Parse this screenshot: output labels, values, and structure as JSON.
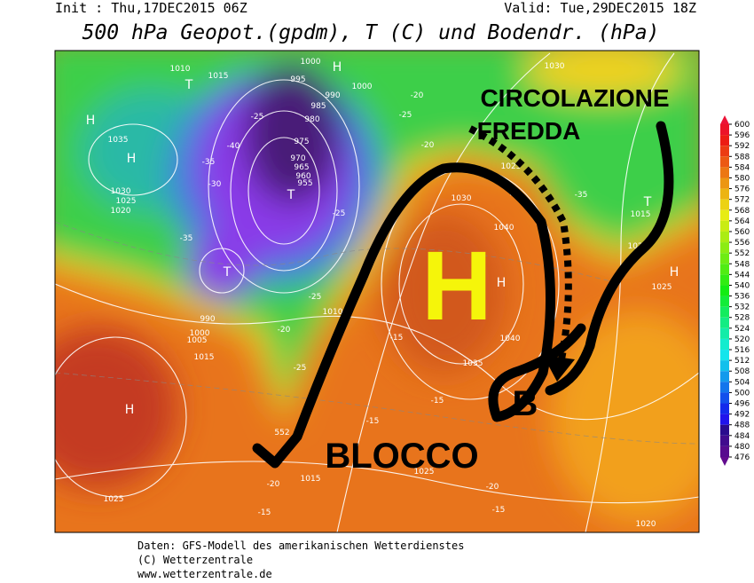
{
  "header": {
    "init": "Init : Thu,17DEC2015 06Z",
    "valid": "Valid: Tue,29DEC2015 18Z",
    "title": "500 hPa Geopot.(gpdm), T (C) und Bodendr. (hPa)"
  },
  "colorbar": {
    "ticks": [
      600,
      596,
      592,
      588,
      584,
      580,
      576,
      572,
      568,
      564,
      560,
      556,
      552,
      548,
      544,
      540,
      536,
      532,
      528,
      524,
      520,
      516,
      512,
      508,
      504,
      500,
      496,
      492,
      488,
      484,
      480,
      476
    ]
  },
  "map": {
    "labels": [
      "1010",
      "1015",
      "1000",
      "995",
      "990",
      "985",
      "980",
      "975",
      "970",
      "965",
      "960",
      "955",
      "1000",
      "1030",
      "1035",
      "1030",
      "1025",
      "1020",
      "1025",
      "1030",
      "1040",
      "1015",
      "1020",
      "1025",
      "990",
      "1000",
      "1005",
      "1015",
      "1010",
      "1040",
      "1035",
      "1025",
      "1025",
      "1015",
      "1020",
      "-40",
      "-35",
      "-30",
      "-25",
      "-35",
      "-25",
      "-25",
      "-20",
      "-25",
      "-15",
      "-15",
      "-20",
      "-15",
      "-20",
      "-15",
      "-15",
      "-35",
      "-30",
      "-25",
      "-20",
      "-20",
      "552",
      "H",
      "H",
      "H",
      "H",
      "H",
      "H",
      "T",
      "T",
      "T",
      "T"
    ],
    "annotations": {
      "high": "H",
      "low": "B",
      "cold1": "CIRCOLAZIONE",
      "cold2": "FREDDA",
      "block": "BLOCCO"
    }
  },
  "footer": {
    "line1": "Daten: GFS-Modell des amerikanischen Wetterdienstes",
    "line2": "(C) Wetterzentrale",
    "line3": "www.wetterzentrale.de"
  }
}
